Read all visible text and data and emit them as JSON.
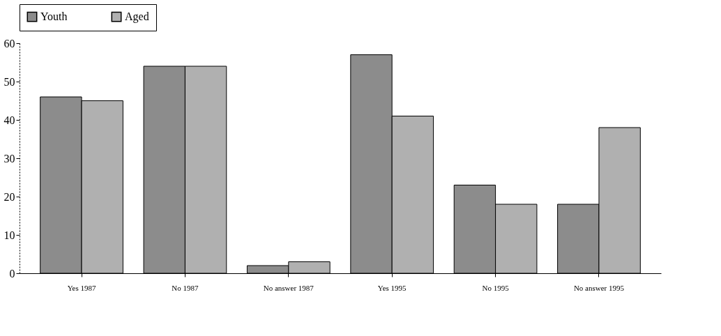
{
  "chart_data": {
    "type": "bar",
    "categories": [
      "Yes 1987",
      "No 1987",
      "No answer 1987",
      "Yes 1995",
      "No 1995",
      "No answer 1995"
    ],
    "series": [
      {
        "name": "Youth",
        "color": "#8c8c8c",
        "values": [
          46,
          54,
          2,
          57,
          23,
          18
        ]
      },
      {
        "name": "Aged",
        "color": "#b0b0b0",
        "values": [
          45,
          54,
          3,
          41,
          18,
          38
        ]
      }
    ],
    "ylim": [
      0,
      60
    ],
    "yticks": [
      0,
      10,
      20,
      30,
      40,
      50,
      60
    ],
    "grid": false,
    "legend": "top"
  }
}
